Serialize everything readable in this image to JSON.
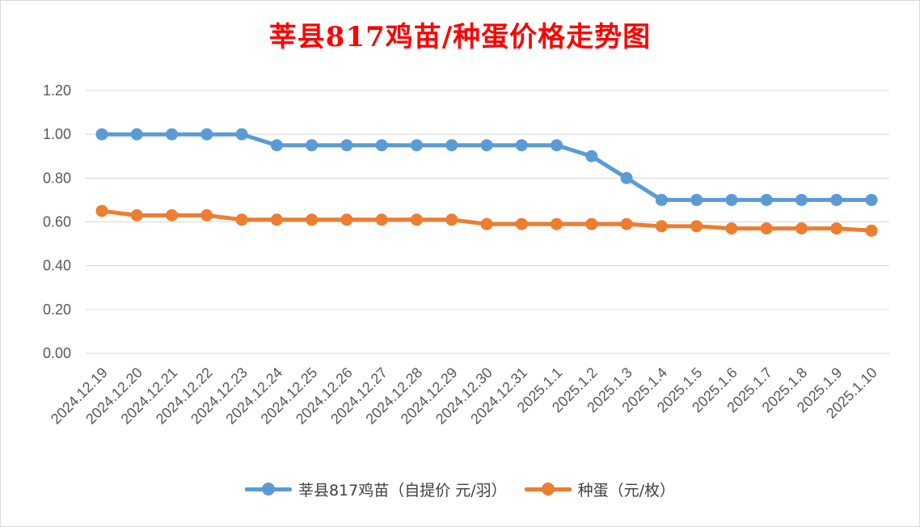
{
  "chart_data": {
    "type": "line",
    "title": "莘县817鸡苗/种蛋价格走势图",
    "xlabel": "",
    "ylabel": "",
    "ylim": [
      0,
      1.2
    ],
    "ytick_values": [
      0,
      0.2,
      0.4,
      0.6,
      0.8,
      1.0,
      1.2
    ],
    "ytick_labels": [
      "0.00",
      "0.20",
      "0.40",
      "0.60",
      "0.80",
      "1.00",
      "1.20"
    ],
    "grid": true,
    "legend_position": "bottom",
    "categories": [
      "2024.12.19",
      "2024.12.20",
      "2024.12.21",
      "2024.12.22",
      "2024.12.23",
      "2024.12.24",
      "2024.12.25",
      "2024.12.26",
      "2024.12.27",
      "2024.12.28",
      "2024.12.29",
      "2024.12.30",
      "2024.12.31",
      "2025.1.1",
      "2025.1.2",
      "2025.1.3",
      "2025.1.4",
      "2025.1.5",
      "2025.1.6",
      "2025.1.7",
      "2025.1.8",
      "2025.1.9",
      "2025.1.10"
    ],
    "series": [
      {
        "name": "莘县817鸡苗（自提价 元/羽）",
        "color": "#5b9bd5",
        "values": [
          1.0,
          1.0,
          1.0,
          1.0,
          1.0,
          0.95,
          0.95,
          0.95,
          0.95,
          0.95,
          0.95,
          0.95,
          0.95,
          0.95,
          0.9,
          0.8,
          0.7,
          0.7,
          0.7,
          0.7,
          0.7,
          0.7,
          0.7
        ]
      },
      {
        "name": "种蛋（元/枚）",
        "color": "#ed7d31",
        "values": [
          0.65,
          0.63,
          0.63,
          0.63,
          0.61,
          0.61,
          0.61,
          0.61,
          0.61,
          0.61,
          0.61,
          0.59,
          0.59,
          0.59,
          0.59,
          0.59,
          0.58,
          0.58,
          0.57,
          0.57,
          0.57,
          0.57,
          0.56
        ]
      }
    ]
  }
}
